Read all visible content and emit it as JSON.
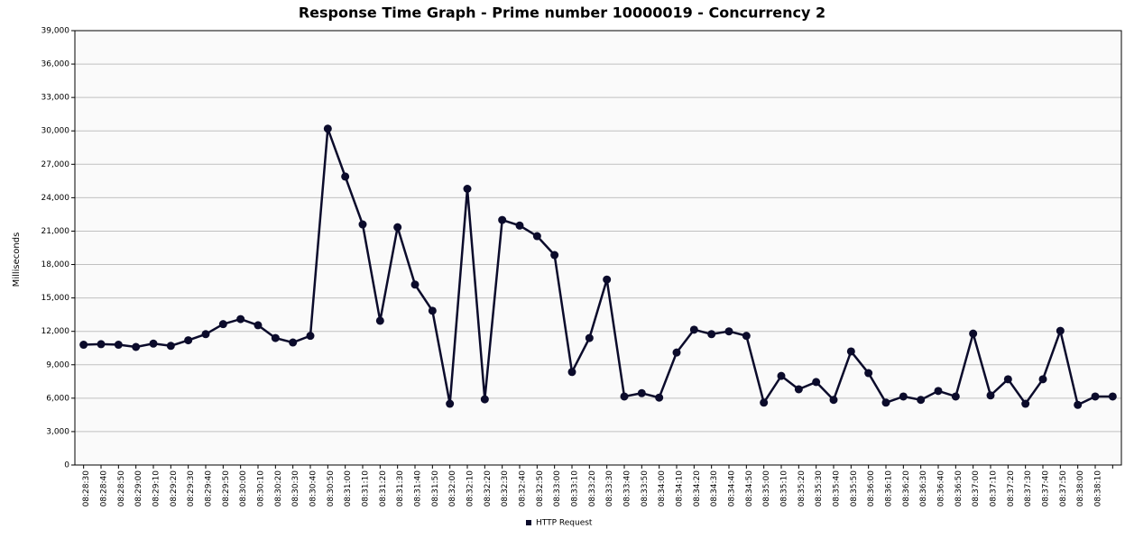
{
  "chart_data": {
    "type": "line",
    "title": "Response Time Graph - Prime number 10000019 - Concurrency 2",
    "y_label": "Milliseconds",
    "categories": [
      "08:28:30",
      "08:28:40",
      "08:28:50",
      "08:29:00",
      "08:29:10",
      "08:29:20",
      "08:29:30",
      "08:29:40",
      "08:29:50",
      "08:30:00",
      "08:30:10",
      "08:30:20",
      "08:30:30",
      "08:30:40",
      "08:30:50",
      "08:31:00",
      "08:31:10",
      "08:31:20",
      "08:31:30",
      "08:31:40",
      "08:31:50",
      "08:32:00",
      "08:32:10",
      "08:32:20",
      "08:32:30",
      "08:32:40",
      "08:32:50",
      "08:33:00",
      "08:33:10",
      "08:33:20",
      "08:33:30",
      "08:33:40",
      "08:33:50",
      "08:34:00",
      "08:34:10",
      "08:34:20",
      "08:34:30",
      "08:34:40",
      "08:34:50",
      "08:35:00",
      "08:35:10",
      "08:35:20",
      "08:35:30",
      "08:35:40",
      "08:35:50",
      "08:36:00",
      "08:36:10",
      "08:36:20",
      "08:36:30",
      "08:36:40",
      "08:36:50",
      "08:37:00",
      "08:37:10",
      "08:37:20",
      "08:37:30",
      "08:37:40",
      "08:37:50",
      "08:38:00",
      "08:38:10",
      null
    ],
    "series": [
      {
        "name": "HTTP Request",
        "color": "#0b0b2b",
        "values": [
          10800,
          10850,
          10800,
          10600,
          10900,
          10700,
          11200,
          11750,
          12650,
          13100,
          12550,
          11400,
          11000,
          11600,
          30200,
          25900,
          21600,
          12950,
          21350,
          16200,
          13850,
          5500,
          24800,
          5900,
          22000,
          21500,
          20550,
          18850,
          8350,
          11400,
          16650,
          6150,
          6450,
          6050,
          10100,
          12150,
          11750,
          12000,
          11600,
          5600,
          8000,
          6800,
          7450,
          5850,
          10200,
          8250,
          5600,
          6150,
          5850,
          6650,
          6150,
          11800,
          6250,
          7700,
          5500,
          7700,
          12050,
          5400,
          6150,
          6150
        ]
      }
    ],
    "ylim": [
      0,
      39000
    ],
    "yticks": [
      0,
      {
        "value": 3000,
        "label": "3,000"
      },
      {
        "value": 6000,
        "label": "6,000"
      },
      {
        "value": 9000,
        "label": "9,000"
      },
      {
        "value": 12000,
        "label": "12,000"
      },
      {
        "value": 15000,
        "label": "15,000"
      },
      {
        "value": 18000,
        "label": "18,000"
      },
      {
        "value": 21000,
        "label": "21,000"
      },
      {
        "value": 24000,
        "label": "24,000"
      },
      {
        "value": 27000,
        "label": "27,000"
      },
      {
        "value": 30000,
        "label": "30,000"
      },
      {
        "value": 33000,
        "label": "33,000"
      },
      {
        "value": 36000,
        "label": "36,000"
      },
      {
        "value": 39000,
        "label": "39,000"
      }
    ],
    "grid": true,
    "legend": "bottom"
  }
}
